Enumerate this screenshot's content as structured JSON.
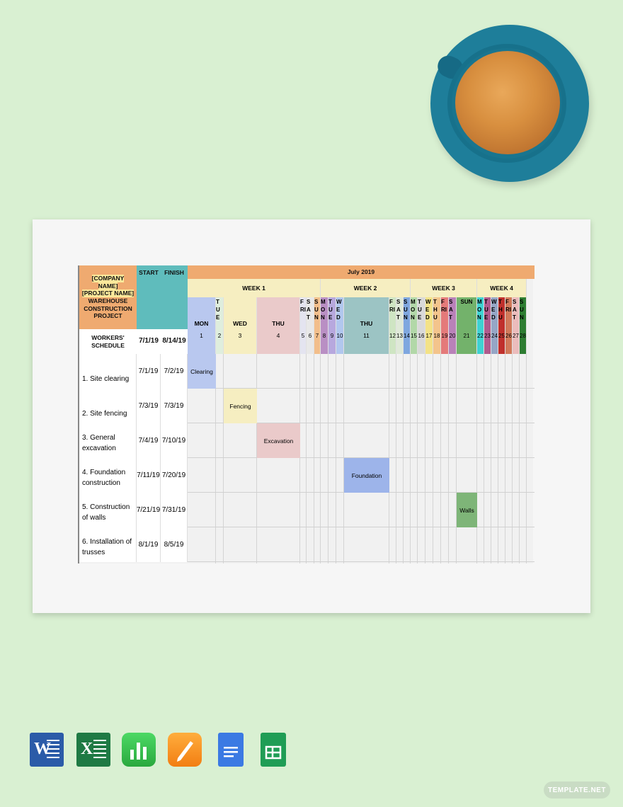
{
  "header": {
    "company_lines": [
      "[COMPANY",
      "NAME]",
      "[PROJECT NAME]",
      "WAREHOUSE",
      "CONSTRUCTION",
      "PROJECT"
    ],
    "start_label": "START",
    "finish_label": "FINISH",
    "month": "July 2019",
    "workers_schedule": "WORKERS' SCHEDULE",
    "start_date": "7/1/19",
    "finish_date": "8/14/19"
  },
  "weeks": [
    "WEEK 1",
    "WEEK 2",
    "WEEK 3",
    "WEEK 4"
  ],
  "days": [
    {
      "label": "MON",
      "num": "1",
      "color": "#b9c8ef"
    },
    {
      "label": "TUE",
      "num": "2",
      "color": "#dfeedd"
    },
    {
      "label": "WED",
      "num": "3",
      "color": "#f6eec1"
    },
    {
      "label": "THU",
      "num": "4",
      "color": "#eacaca"
    },
    {
      "label": "FRI",
      "num": "5",
      "color": "#e4e4f0"
    },
    {
      "label": "SAT",
      "num": "6",
      "color": "#e8e8e8"
    },
    {
      "label": "SUN",
      "num": "7",
      "color": "#f2be8b"
    },
    {
      "label": "MON",
      "num": "8",
      "color": "#b98fc4"
    },
    {
      "label": "TUE",
      "num": "9",
      "color": "#b7a8de"
    },
    {
      "label": "WED",
      "num": "10",
      "color": "#b1c7ee"
    },
    {
      "label": "THU",
      "num": "11",
      "color": "#9cc4c4"
    },
    {
      "label": "FRI",
      "num": "12",
      "color": "#cfe5c3"
    },
    {
      "label": "SAT",
      "num": "13",
      "color": "#dfe9d8"
    },
    {
      "label": "SUN",
      "num": "14",
      "color": "#7fa7df"
    },
    {
      "label": "MON",
      "num": "15",
      "color": "#b2d8a8"
    },
    {
      "label": "TUE",
      "num": "16",
      "color": "#d9d9d9"
    },
    {
      "label": "WED",
      "num": "17",
      "color": "#f3e287"
    },
    {
      "label": "THU",
      "num": "18",
      "color": "#f3c48c"
    },
    {
      "label": "FRI",
      "num": "19",
      "color": "#e47a7a"
    },
    {
      "label": "SAT",
      "num": "20",
      "color": "#b982b9"
    },
    {
      "label": "SUN",
      "num": "21",
      "color": "#73b26b"
    },
    {
      "label": "MON",
      "num": "22",
      "color": "#3fd2d2"
    },
    {
      "label": "TUE",
      "num": "23",
      "color": "#b05b8d"
    },
    {
      "label": "WED",
      "num": "24",
      "color": "#96a6c6"
    },
    {
      "label": "THU",
      "num": "25",
      "color": "#c0302c"
    },
    {
      "label": "FRI",
      "num": "26",
      "color": "#d1795a"
    },
    {
      "label": "SAT",
      "num": "27",
      "color": "#ebbcbc"
    },
    {
      "label": "SUN",
      "num": "28",
      "color": "#2e7d32"
    }
  ],
  "tasks": [
    {
      "name": "1. Site clearing",
      "start": "7/1/19",
      "finish": "7/2/19",
      "bar_label": "Clearing",
      "bar_color": "#b9c8ef"
    },
    {
      "name": "2. Site fencing",
      "start": "7/3/19",
      "finish": "7/3/19",
      "bar_label": "Fencing",
      "bar_color": "#f6eec1"
    },
    {
      "name": "3. General excavation",
      "start": "7/4/19",
      "finish": "7/10/19",
      "bar_label": "Excavation",
      "bar_color": "#eacaca"
    },
    {
      "name": "4. Foundation construction",
      "start": "7/11/19",
      "finish": "7/20/19",
      "bar_label": "Foundation",
      "bar_color": "#9db4ea"
    },
    {
      "name": "5. Construction of walls",
      "start": "7/21/19",
      "finish": "7/31/19",
      "bar_label": "Walls",
      "bar_color": "#7eb578"
    },
    {
      "name": "6. Installation of trusses",
      "start": "8/1/19",
      "finish": "8/5/19",
      "bar_label": "",
      "bar_color": ""
    }
  ],
  "icons": [
    "word-icon",
    "excel-icon",
    "numbers-icon",
    "pages-icon",
    "google-docs-icon",
    "google-sheets-icon"
  ],
  "watermark": "TEMPLATE.NET"
}
